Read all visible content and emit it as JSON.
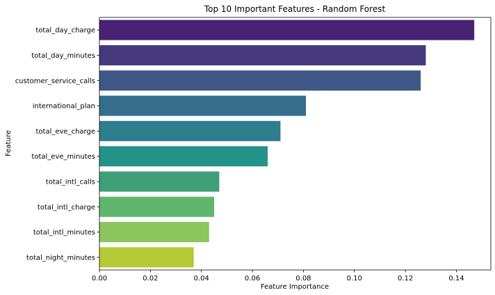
{
  "chart_data": {
    "type": "bar",
    "orientation": "horizontal",
    "title": "Top 10 Important Features - Random Forest",
    "xlabel": "Feature Importance",
    "ylabel": "Feature",
    "xlim": [
      0,
      0.1535
    ],
    "xticks": [
      0.0,
      0.02,
      0.04,
      0.06,
      0.08,
      0.1,
      0.12,
      0.14
    ],
    "xtick_labels": [
      "0.00",
      "0.02",
      "0.04",
      "0.06",
      "0.08",
      "0.10",
      "0.12",
      "0.14"
    ],
    "grid": false,
    "categories": [
      "total_day_charge",
      "total_day_minutes",
      "customer_service_calls",
      "international_plan",
      "total_eve_charge",
      "total_eve_minutes",
      "total_intl_calls",
      "total_intl_charge",
      "total_intl_minutes",
      "total_night_minutes"
    ],
    "values": [
      0.147,
      0.128,
      0.126,
      0.081,
      0.071,
      0.066,
      0.047,
      0.045,
      0.043,
      0.037
    ],
    "colors": [
      "#482374",
      "#46397e",
      "#3f5888",
      "#356d8d",
      "#2e7e8e",
      "#26938b",
      "#3e9f78",
      "#5eb76d",
      "#8ac65b",
      "#b4ca36"
    ]
  }
}
